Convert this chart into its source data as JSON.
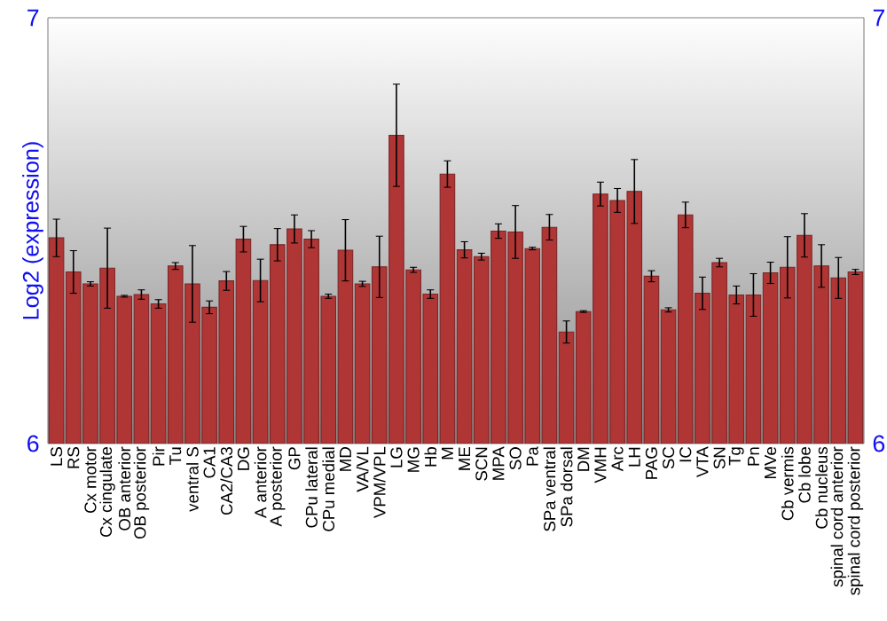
{
  "chart_data": {
    "type": "bar",
    "ylabel": "Log2 (expression)",
    "categories": [
      "LS",
      "RS",
      "Cx motor",
      "Cx cingulate",
      "OB anterior",
      "OB posterior",
      "Pir",
      "Tu",
      "ventral S",
      "CA1",
      "CA2/CA3",
      "DG",
      "A anterior",
      "A posterior",
      "GP",
      "CPu lateral",
      "CPu medial",
      "MD",
      "VA/VL",
      "VPM/VPL",
      "LG",
      "MG",
      "Hb",
      "M",
      "ME",
      "SCN",
      "MPA",
      "SO",
      "Pa",
      "SPa ventral",
      "SPa dorsal",
      "DM",
      "VMH",
      "Arc",
      "LH",
      "PAG",
      "SC",
      "IC",
      "VTA",
      "SN",
      "Tg",
      "Pn",
      "MVe",
      "Cb vermis",
      "Cb lobe",
      "Cb nucleus",
      "spinal cord anterior",
      "spinal cord posterior"
    ],
    "values": [
      6.483,
      6.403,
      6.375,
      6.412,
      6.346,
      6.35,
      6.328,
      6.417,
      6.375,
      6.32,
      6.382,
      6.48,
      6.383,
      6.467,
      6.504,
      6.48,
      6.346,
      6.454,
      6.375,
      6.415,
      6.724,
      6.408,
      6.351,
      6.633,
      6.455,
      6.439,
      6.499,
      6.497,
      6.458,
      6.508,
      6.262,
      6.31,
      6.586,
      6.571,
      6.592,
      6.393,
      6.314,
      6.537,
      6.353,
      6.425,
      6.349,
      6.349,
      6.401,
      6.414,
      6.489,
      6.417,
      6.389,
      6.403
    ],
    "errors": [
      0.044,
      0.05,
      0.005,
      0.094,
      0.002,
      0.011,
      0.01,
      0.008,
      0.09,
      0.015,
      0.022,
      0.03,
      0.05,
      0.038,
      0.033,
      0.02,
      0.005,
      0.072,
      0.006,
      0.072,
      0.12,
      0.006,
      0.01,
      0.031,
      0.019,
      0.008,
      0.017,
      0.062,
      0.003,
      0.03,
      0.026,
      0.002,
      0.028,
      0.028,
      0.075,
      0.013,
      0.005,
      0.03,
      0.038,
      0.01,
      0.021,
      0.05,
      0.025,
      0.072,
      0.051,
      0.05,
      0.048,
      0.006
    ],
    "color": "#b03535",
    "ylim": [
      6,
      7
    ],
    "yticks": [
      6,
      7
    ],
    "y2lim": [
      6,
      7
    ],
    "y2ticks": [
      6,
      7
    ],
    "grid": false
  }
}
